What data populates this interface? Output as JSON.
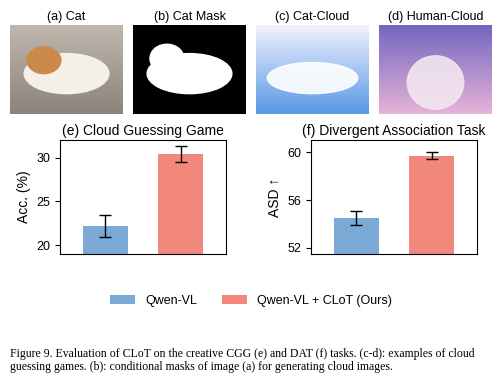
{
  "images": [
    {
      "label": "(a) Cat"
    },
    {
      "label": "(b) Cat Mask"
    },
    {
      "label": "(c) Cat-Cloud"
    },
    {
      "label": "(d) Human-Cloud"
    }
  ],
  "chart_data": [
    {
      "type": "bar",
      "title": "(e) Cloud Guessing Game",
      "y_label": "Acc. (%)",
      "categories": [
        null,
        null
      ],
      "series": [
        {
          "name": "Qwen-VL",
          "color": "#79a9d4",
          "values": [
            22.2,
            null
          ],
          "errors": [
            1.3,
            null
          ]
        },
        {
          "name": "Qwen-VL + CLoT (Ours)",
          "color": "#f2877b",
          "values": [
            null,
            30.4
          ],
          "errors": [
            null,
            0.9
          ]
        }
      ],
      "ylim": [
        19,
        32
      ],
      "yticks": [
        20,
        25,
        30
      ],
      "tick_labels": "y",
      "legend": "lower center"
    },
    {
      "type": "bar",
      "title": "(f) Divergent Association Task",
      "y_label": "ASD ↑",
      "categories": [
        null,
        null
      ],
      "series": [
        {
          "name": "Qwen-VL",
          "color": "#79a9d4",
          "values": [
            54.5,
            null
          ],
          "errors": [
            0.6,
            null
          ]
        },
        {
          "name": "Qwen-VL + CLoT (Ours)",
          "color": "#f2877b",
          "values": [
            null,
            59.7
          ],
          "errors": [
            null,
            0.3
          ]
        }
      ],
      "ylim": [
        51.5,
        61
      ],
      "yticks": [
        52,
        56,
        60
      ],
      "tick_labels": "y",
      "legend": "lower center"
    }
  ],
  "caption": "Figure 9. Evaluation of CLoT on the creative CGG (e) and DAT (f) tasks. (c-d): examples of cloud guessing games. (b): conditional masks of image (a) for generating cloud images."
}
